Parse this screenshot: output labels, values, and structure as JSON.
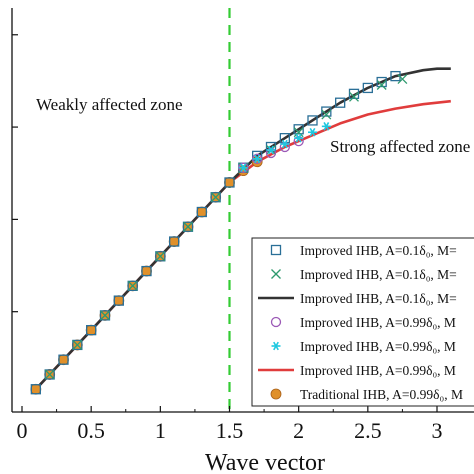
{
  "chart_data": {
    "type": "line",
    "title": "",
    "xlabel": "Wave vector",
    "ylabel": "",
    "xlim": [
      0,
      3.2
    ],
    "ylim": [
      0,
      1.3
    ],
    "xticks": [
      "0",
      "0.5",
      "1",
      "1.5",
      "2",
      "2.5",
      "3"
    ],
    "grid": false,
    "legend_position": "bottom-right",
    "vline": {
      "x": 1.5,
      "color": "#33cc33"
    },
    "annotations": [
      {
        "text": "Weakly affected zone",
        "x": 0.1,
        "y": 1.06
      },
      {
        "text": "Strong affected zone",
        "x": 1.9,
        "y": 0.82
      }
    ],
    "series": [
      {
        "name": "Improved IHB, A=0.1δ₀,  M=",
        "marker": "square",
        "color": "#2a6f97",
        "x": [
          0.1,
          0.2,
          0.3,
          0.4,
          0.5,
          0.6,
          0.7,
          0.8,
          0.9,
          1.0,
          1.1,
          1.2,
          1.3,
          1.4,
          1.5,
          1.6,
          1.7,
          1.8,
          1.9,
          2.0,
          2.1,
          2.2,
          2.3,
          2.4,
          2.5,
          2.6,
          2.7
        ],
        "y": [
          0.05,
          0.1,
          0.15,
          0.2,
          0.25,
          0.3,
          0.35,
          0.4,
          0.45,
          0.5,
          0.55,
          0.6,
          0.65,
          0.7,
          0.75,
          0.8,
          0.84,
          0.87,
          0.9,
          0.93,
          0.96,
          0.99,
          1.02,
          1.05,
          1.07,
          1.09,
          1.11
        ]
      },
      {
        "name": "Improved IHB, A=0.1δ₀,  M=",
        "marker": "x",
        "color": "#2e9a6e",
        "x": [
          0.2,
          0.4,
          0.6,
          0.8,
          1.0,
          1.2,
          1.4,
          1.6,
          1.8,
          2.0,
          2.2,
          2.4,
          2.6,
          2.75
        ],
        "y": [
          0.1,
          0.2,
          0.3,
          0.4,
          0.5,
          0.6,
          0.7,
          0.8,
          0.86,
          0.92,
          0.98,
          1.04,
          1.08,
          1.1
        ]
      },
      {
        "name": "Improved IHB, A=0.1δ₀,  M=",
        "marker": "line",
        "color": "#333333",
        "x": [
          0.1,
          0.5,
          1.0,
          1.5,
          1.7,
          1.9,
          2.1,
          2.3,
          2.5,
          2.7,
          2.9,
          3.0,
          3.1
        ],
        "y": [
          0.05,
          0.25,
          0.5,
          0.75,
          0.84,
          0.9,
          0.96,
          1.02,
          1.07,
          1.11,
          1.13,
          1.135,
          1.135
        ]
      },
      {
        "name": "Improved IHB, A=0.99δ₀,  M",
        "marker": "circle-open",
        "color": "#9b59b6",
        "x": [
          1.6,
          1.7,
          1.8,
          1.9,
          2.0
        ],
        "y": [
          0.8,
          0.83,
          0.85,
          0.87,
          0.89
        ]
      },
      {
        "name": "Improved IHB, A=0.99δ₀,  M",
        "marker": "star",
        "color": "#1ec8e0",
        "x": [
          1.6,
          1.7,
          1.8,
          1.9,
          2.0,
          2.1,
          2.2
        ],
        "y": [
          0.8,
          0.83,
          0.86,
          0.88,
          0.9,
          0.92,
          0.94
        ]
      },
      {
        "name": "Improved IHB, A=0.99δ₀,  M",
        "marker": "line",
        "color": "#e03c3c",
        "x": [
          0.1,
          0.5,
          1.0,
          1.5,
          1.7,
          1.9,
          2.1,
          2.3,
          2.5,
          2.7,
          2.9,
          3.1
        ],
        "y": [
          0.05,
          0.25,
          0.5,
          0.75,
          0.82,
          0.87,
          0.91,
          0.95,
          0.98,
          1.0,
          1.015,
          1.025
        ]
      },
      {
        "name": "Traditional IHB, A=0.99δ₀,  M",
        "marker": "circle-filled",
        "color": "#e0902a",
        "x": [
          0.1,
          0.2,
          0.3,
          0.4,
          0.5,
          0.6,
          0.7,
          0.8,
          0.9,
          1.0,
          1.1,
          1.2,
          1.3,
          1.4,
          1.5,
          1.6,
          1.7
        ],
        "y": [
          0.05,
          0.1,
          0.15,
          0.2,
          0.25,
          0.3,
          0.35,
          0.4,
          0.45,
          0.5,
          0.55,
          0.6,
          0.65,
          0.7,
          0.75,
          0.79,
          0.82
        ]
      }
    ]
  }
}
